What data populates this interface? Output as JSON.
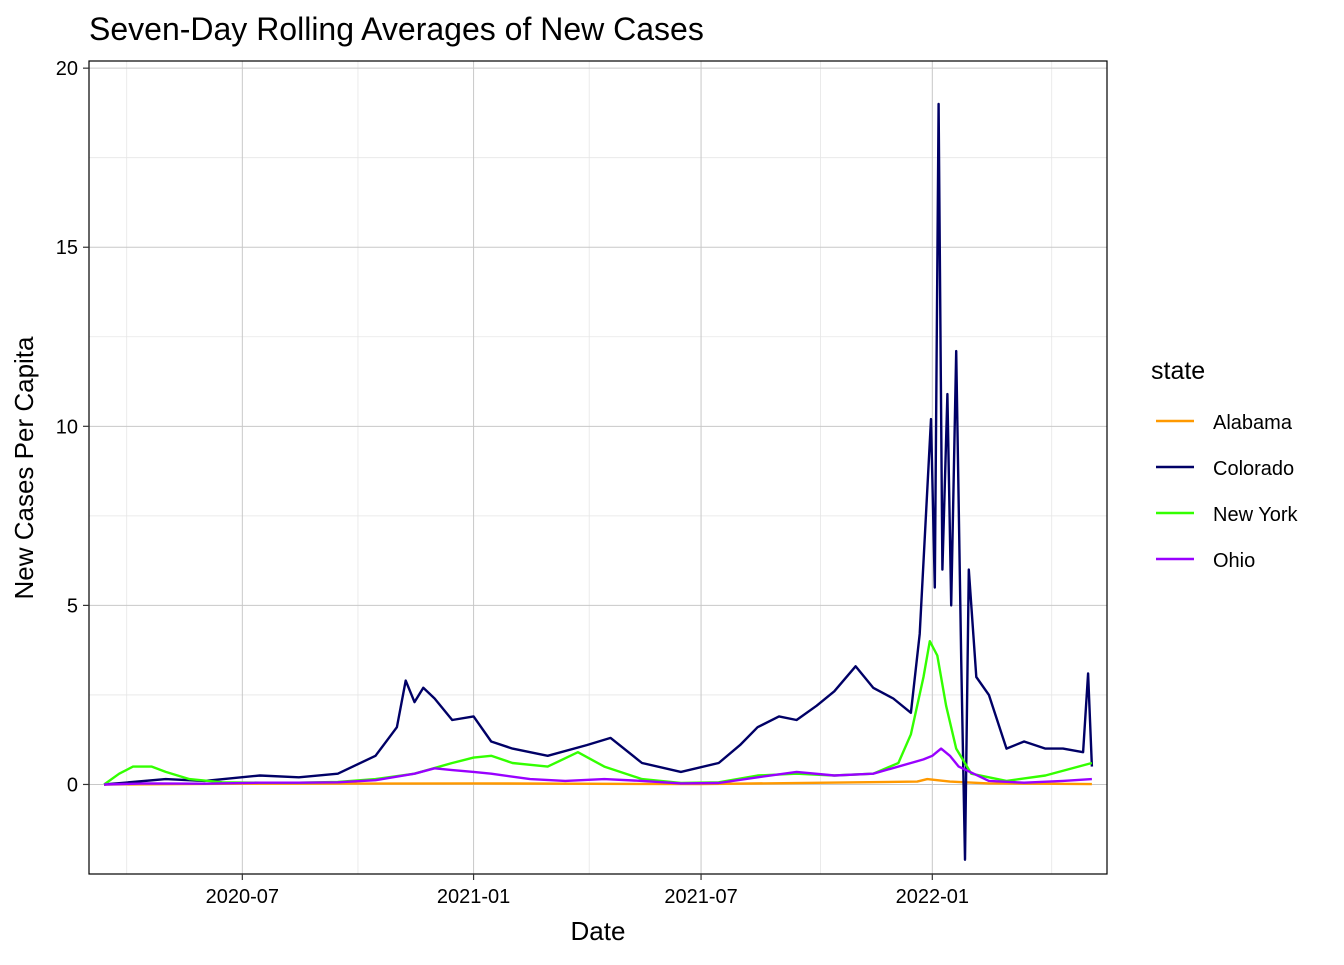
{
  "chart_data": {
    "type": "line",
    "title": "Seven-Day Rolling Averages of New Cases",
    "xlabel": "Date",
    "ylabel": "New Cases Per Capita",
    "xlim": [
      "2020-03-01",
      "2022-05-20"
    ],
    "ylim": [
      -2.5,
      20.2
    ],
    "x_ticks": [
      "2020-07-01",
      "2021-01-01",
      "2021-07-01",
      "2022-01-01"
    ],
    "x_tick_labels": [
      "2020-07",
      "2021-01",
      "2021-07",
      "2022-01"
    ],
    "y_ticks": [
      0,
      5,
      10,
      15,
      20
    ],
    "y_tick_labels": [
      "0",
      "5",
      "10",
      "15",
      "20"
    ],
    "grid": true,
    "legend": {
      "title": "state",
      "position": "right"
    },
    "series": [
      {
        "name": "Alabama",
        "color": "#FF9900",
        "points": [
          [
            "2020-03-13",
            0
          ],
          [
            "2020-07-01",
            0.02
          ],
          [
            "2021-01-01",
            0.03
          ],
          [
            "2021-07-01",
            0.01
          ],
          [
            "2021-12-20",
            0.08
          ],
          [
            "2021-12-28",
            0.15
          ],
          [
            "2022-01-05",
            0.12
          ],
          [
            "2022-01-15",
            0.08
          ],
          [
            "2022-02-15",
            0.03
          ],
          [
            "2022-05-08",
            0.01
          ]
        ]
      },
      {
        "name": "Colorado",
        "color": "#000066",
        "points": [
          [
            "2020-03-13",
            0
          ],
          [
            "2020-05-01",
            0.15
          ],
          [
            "2020-06-01",
            0.1
          ],
          [
            "2020-07-15",
            0.25
          ],
          [
            "2020-08-15",
            0.2
          ],
          [
            "2020-09-15",
            0.3
          ],
          [
            "2020-10-15",
            0.8
          ],
          [
            "2020-11-01",
            1.6
          ],
          [
            "2020-11-08",
            2.9
          ],
          [
            "2020-11-15",
            2.3
          ],
          [
            "2020-11-22",
            2.7
          ],
          [
            "2020-12-01",
            2.4
          ],
          [
            "2020-12-15",
            1.8
          ],
          [
            "2021-01-01",
            1.9
          ],
          [
            "2021-01-15",
            1.2
          ],
          [
            "2021-02-01",
            1.0
          ],
          [
            "2021-03-01",
            0.8
          ],
          [
            "2021-04-01",
            1.1
          ],
          [
            "2021-04-20",
            1.3
          ],
          [
            "2021-05-15",
            0.6
          ],
          [
            "2021-06-15",
            0.35
          ],
          [
            "2021-07-15",
            0.6
          ],
          [
            "2021-08-01",
            1.1
          ],
          [
            "2021-08-15",
            1.6
          ],
          [
            "2021-09-01",
            1.9
          ],
          [
            "2021-09-15",
            1.8
          ],
          [
            "2021-10-01",
            2.2
          ],
          [
            "2021-10-15",
            2.6
          ],
          [
            "2021-11-01",
            3.3
          ],
          [
            "2021-11-15",
            2.7
          ],
          [
            "2021-12-01",
            2.4
          ],
          [
            "2021-12-15",
            2.0
          ],
          [
            "2021-12-22",
            4.2
          ],
          [
            "2021-12-31",
            10.2
          ],
          [
            "2022-01-03",
            5.5
          ],
          [
            "2022-01-06",
            19.0
          ],
          [
            "2022-01-09",
            6.0
          ],
          [
            "2022-01-13",
            10.9
          ],
          [
            "2022-01-16",
            5.0
          ],
          [
            "2022-01-20",
            12.1
          ],
          [
            "2022-01-24",
            3.5
          ],
          [
            "2022-01-27",
            -2.1
          ],
          [
            "2022-01-30",
            6.0
          ],
          [
            "2022-02-05",
            3.0
          ],
          [
            "2022-02-15",
            2.5
          ],
          [
            "2022-03-01",
            1.0
          ],
          [
            "2022-03-15",
            1.2
          ],
          [
            "2022-04-01",
            1.0
          ],
          [
            "2022-04-15",
            1.0
          ],
          [
            "2022-05-01",
            0.9
          ],
          [
            "2022-05-05",
            3.1
          ],
          [
            "2022-05-08",
            0.5
          ]
        ]
      },
      {
        "name": "New York",
        "color": "#33FF00",
        "points": [
          [
            "2020-03-13",
            0
          ],
          [
            "2020-03-25",
            0.3
          ],
          [
            "2020-04-05",
            0.5
          ],
          [
            "2020-04-20",
            0.5
          ],
          [
            "2020-05-01",
            0.35
          ],
          [
            "2020-05-20",
            0.15
          ],
          [
            "2020-06-15",
            0.06
          ],
          [
            "2020-07-15",
            0.05
          ],
          [
            "2020-08-15",
            0.05
          ],
          [
            "2020-09-15",
            0.07
          ],
          [
            "2020-10-15",
            0.15
          ],
          [
            "2020-11-15",
            0.3
          ],
          [
            "2020-12-15",
            0.6
          ],
          [
            "2021-01-01",
            0.75
          ],
          [
            "2021-01-15",
            0.8
          ],
          [
            "2021-02-01",
            0.6
          ],
          [
            "2021-03-01",
            0.5
          ],
          [
            "2021-03-25",
            0.9
          ],
          [
            "2021-04-15",
            0.5
          ],
          [
            "2021-05-15",
            0.15
          ],
          [
            "2021-06-15",
            0.04
          ],
          [
            "2021-07-15",
            0.06
          ],
          [
            "2021-08-15",
            0.25
          ],
          [
            "2021-09-15",
            0.3
          ],
          [
            "2021-10-15",
            0.25
          ],
          [
            "2021-11-15",
            0.3
          ],
          [
            "2021-12-05",
            0.6
          ],
          [
            "2021-12-15",
            1.4
          ],
          [
            "2021-12-25",
            3.0
          ],
          [
            "2021-12-30",
            4.0
          ],
          [
            "2022-01-05",
            3.6
          ],
          [
            "2022-01-12",
            2.2
          ],
          [
            "2022-01-20",
            1.0
          ],
          [
            "2022-02-01",
            0.3
          ],
          [
            "2022-03-01",
            0.1
          ],
          [
            "2022-04-01",
            0.25
          ],
          [
            "2022-05-08",
            0.6
          ]
        ]
      },
      {
        "name": "Ohio",
        "color": "#9900FF",
        "points": [
          [
            "2020-03-13",
            0
          ],
          [
            "2020-04-15",
            0.03
          ],
          [
            "2020-06-01",
            0.02
          ],
          [
            "2020-07-15",
            0.05
          ],
          [
            "2020-08-15",
            0.05
          ],
          [
            "2020-09-15",
            0.06
          ],
          [
            "2020-10-15",
            0.12
          ],
          [
            "2020-11-15",
            0.3
          ],
          [
            "2020-12-01",
            0.45
          ],
          [
            "2020-12-15",
            0.4
          ],
          [
            "2021-01-01",
            0.35
          ],
          [
            "2021-01-15",
            0.3
          ],
          [
            "2021-02-15",
            0.15
          ],
          [
            "2021-03-15",
            0.1
          ],
          [
            "2021-04-15",
            0.15
          ],
          [
            "2021-05-15",
            0.1
          ],
          [
            "2021-06-15",
            0.03
          ],
          [
            "2021-07-15",
            0.04
          ],
          [
            "2021-08-15",
            0.2
          ],
          [
            "2021-09-15",
            0.35
          ],
          [
            "2021-10-15",
            0.25
          ],
          [
            "2021-11-15",
            0.3
          ],
          [
            "2021-12-15",
            0.6
          ],
          [
            "2021-12-25",
            0.7
          ],
          [
            "2022-01-01",
            0.8
          ],
          [
            "2022-01-08",
            1.0
          ],
          [
            "2022-01-15",
            0.8
          ],
          [
            "2022-01-22",
            0.5
          ],
          [
            "2022-02-15",
            0.1
          ],
          [
            "2022-03-15",
            0.05
          ],
          [
            "2022-04-15",
            0.1
          ],
          [
            "2022-05-08",
            0.15
          ]
        ]
      }
    ]
  }
}
